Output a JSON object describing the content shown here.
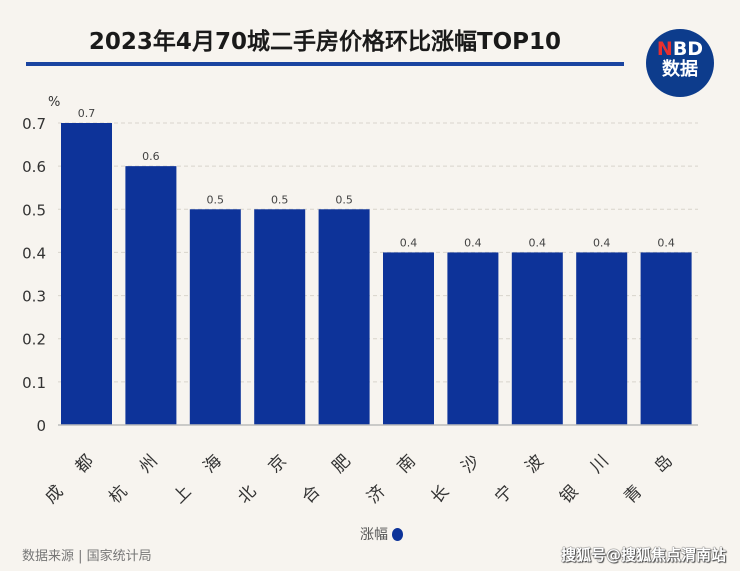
{
  "title": "2023年4月70城二手房价格环比涨幅TOP10",
  "logo": {
    "line1_n": "N",
    "line1_rest": "BD",
    "line2": "数据"
  },
  "source": "数据来源 | 国家统计局",
  "credit": "搜狐号@搜狐焦点渭南站",
  "colors": {
    "bar": "#0d3399",
    "accent": "#1a44a0"
  },
  "chart_data": {
    "type": "bar",
    "title": "2023年4月70城二手房价格环比涨幅TOP10",
    "ylabel": "%",
    "xlabel": "",
    "categories": [
      "成都",
      "杭州",
      "上海",
      "北京",
      "合肥",
      "济南",
      "长沙",
      "宁波",
      "银川",
      "青岛"
    ],
    "series": [
      {
        "name": "涨幅",
        "values": [
          0.7,
          0.6,
          0.5,
          0.5,
          0.5,
          0.4,
          0.4,
          0.4,
          0.4,
          0.4
        ]
      }
    ],
    "ylim": [
      0,
      0.7
    ],
    "yticks": [
      "0",
      "0.1",
      "0.2",
      "0.3",
      "0.4",
      "0.5",
      "0.6",
      "0.7"
    ],
    "grid": true,
    "legend": "bottom-center"
  }
}
